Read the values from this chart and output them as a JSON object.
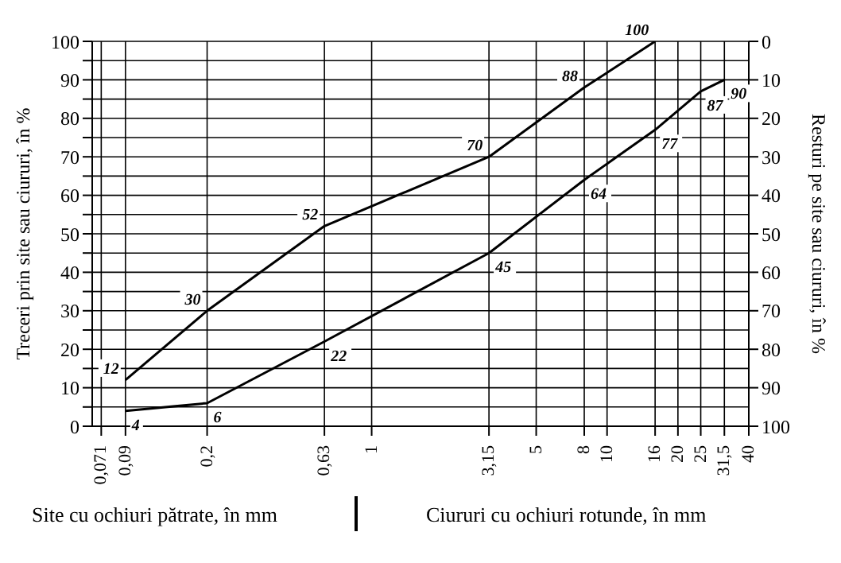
{
  "chart_data": {
    "type": "line",
    "xlabel": "Site cu ochiuri pătrate, în mm",
    "ylabel": "Treceri prin site sau ciururi, în %",
    "y2label": "Resturi pe site sau ciururi, în %",
    "annotations": [
      "Ciururi cu ochiuri rotunde, în mm"
    ],
    "log": "x",
    "xlim": [
      0.065,
      40
    ],
    "xticks": [
      {
        "value": 0.071,
        "label": "0,071"
      },
      {
        "value": 0.09,
        "label": "0,09"
      },
      {
        "value": 0.2,
        "label": "0,2"
      },
      {
        "value": 0.63,
        "label": "0,63"
      },
      1,
      {
        "value": 3.15,
        "label": "3,15"
      },
      5,
      8,
      10,
      16,
      20,
      25,
      {
        "value": 31.5,
        "label": "31,5"
      },
      40
    ],
    "ylim": [
      0,
      100
    ],
    "yticks": [
      0,
      {
        "value": 5,
        "label": null
      },
      10,
      {
        "value": 15,
        "label": null
      },
      20,
      {
        "value": 25,
        "label": null
      },
      30,
      {
        "value": 35,
        "label": null
      },
      40,
      {
        "value": 45,
        "label": null
      },
      50,
      {
        "value": 55,
        "label": null
      },
      60,
      {
        "value": 65,
        "label": null
      },
      70,
      {
        "value": 75,
        "label": null
      },
      80,
      {
        "value": 85,
        "label": null
      },
      90,
      {
        "value": 95,
        "label": null
      },
      100
    ],
    "y2lim": [
      100,
      0
    ],
    "y2ticks": [
      0,
      10,
      20,
      30,
      40,
      50,
      60,
      70,
      80,
      90,
      100
    ],
    "grid": true,
    "marker": "none",
    "line_style": "solid",
    "data_labels": true,
    "series": [
      {
        "color": "#000000",
        "x": [
          0.09,
          0.2,
          0.63,
          3.15,
          8,
          16
        ],
        "values": [
          12,
          30,
          52,
          70,
          88,
          100
        ]
      },
      {
        "color": "#000000",
        "x": [
          0.09,
          0.2,
          0.63,
          3.15,
          8,
          16,
          25,
          31.5
        ],
        "values": [
          4,
          6,
          22,
          45,
          64,
          77,
          87,
          90
        ]
      }
    ]
  }
}
